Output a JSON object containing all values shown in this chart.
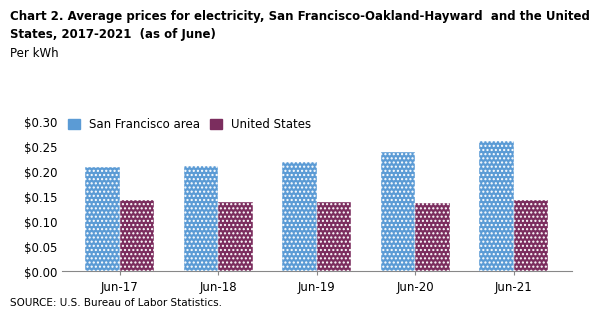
{
  "title_line1": "Chart 2. Average prices for electricity, San Francisco-Oakland-Hayward  and the United",
  "title_line2": "States, 2017-2021  (as of June)",
  "ylabel": "Per kWh",
  "categories": [
    "Jun-17",
    "Jun-18",
    "Jun-19",
    "Jun-20",
    "Jun-21"
  ],
  "sf_values": [
    0.209,
    0.211,
    0.22,
    0.24,
    0.261
  ],
  "us_values": [
    0.143,
    0.139,
    0.139,
    0.137,
    0.143
  ],
  "sf_color": "#5B9BD5",
  "us_color": "#7B2D5E",
  "ylim": [
    0.0,
    0.32
  ],
  "yticks": [
    0.0,
    0.05,
    0.1,
    0.15,
    0.2,
    0.25,
    0.3
  ],
  "sf_label": "San Francisco area",
  "us_label": "United States",
  "source_text": "SOURCE: U.S. Bureau of Labor Statistics.",
  "bar_width": 0.35,
  "background_color": "#ffffff",
  "title_fontsize": 8.5,
  "ylabel_fontsize": 8.5,
  "tick_fontsize": 8.5,
  "legend_fontsize": 8.5,
  "source_fontsize": 7.5
}
